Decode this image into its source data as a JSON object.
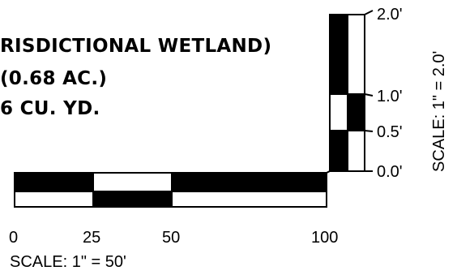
{
  "notes": {
    "line1": "RISDICTIONAL WETLAND)",
    "line2": "(0.68 AC.)",
    "line3": "6 CU. YD."
  },
  "horizontal_scale": {
    "ticks": [
      "0",
      "25",
      "50",
      "100"
    ],
    "caption": "SCALE: 1\" = 50'"
  },
  "vertical_scale": {
    "ticks": [
      "2.0'",
      "1.0'",
      "0.5'",
      "0.0'"
    ],
    "caption": "SCALE: 1\" = 2.0'"
  },
  "colors": {
    "ink": "#000000",
    "paper": "#ffffff"
  }
}
